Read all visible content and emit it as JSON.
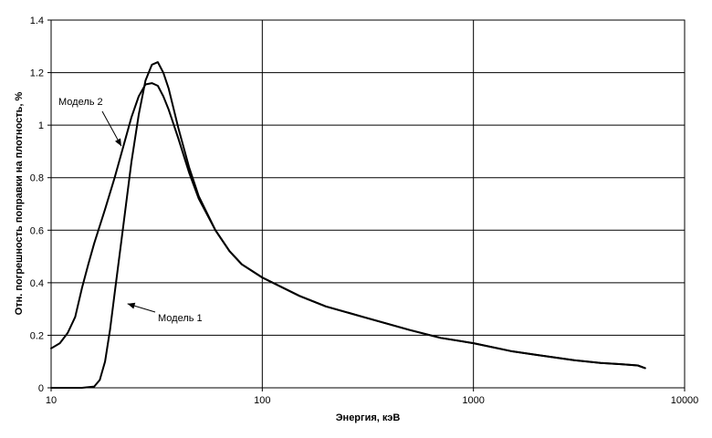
{
  "chart_data": {
    "type": "line",
    "title": "",
    "xlabel": "Энергия, кэВ",
    "ylabel": "Отн. погрешность поправки на плотность, %",
    "x_scale": "log",
    "xlim": [
      10,
      10000
    ],
    "ylim": [
      0,
      1.4
    ],
    "x_ticks": [
      10,
      100,
      1000,
      10000
    ],
    "x_tick_labels": [
      "10",
      "100",
      "1000",
      "10000"
    ],
    "y_ticks": [
      0,
      0.2,
      0.4,
      0.6,
      0.8,
      1,
      1.2,
      1.4
    ],
    "y_tick_labels": [
      "0",
      "0.2",
      "0.4",
      "0.6",
      "0.8",
      "1",
      "1.2",
      "1.4"
    ],
    "grid": true,
    "line_color": "#000000",
    "series": [
      {
        "name": "Модель 1",
        "x": [
          10,
          14,
          16,
          17,
          18,
          19,
          20,
          22,
          24,
          26,
          28,
          30,
          32,
          34,
          36,
          40,
          45,
          50,
          60,
          70,
          80,
          100,
          150,
          200,
          300,
          500,
          700,
          1000,
          1500,
          2000,
          3000,
          4000,
          5000,
          6000,
          6500
        ],
        "y": [
          0,
          0,
          0.005,
          0.03,
          0.1,
          0.22,
          0.36,
          0.62,
          0.86,
          1.04,
          1.17,
          1.23,
          1.24,
          1.2,
          1.14,
          0.99,
          0.84,
          0.73,
          0.6,
          0.52,
          0.47,
          0.42,
          0.35,
          0.31,
          0.27,
          0.22,
          0.19,
          0.17,
          0.14,
          0.125,
          0.105,
          0.095,
          0.09,
          0.085,
          0.075
        ]
      },
      {
        "name": "Модель 2",
        "x": [
          10,
          11,
          12,
          13,
          14,
          15,
          16,
          18,
          20,
          22,
          24,
          26,
          28,
          30,
          32,
          34,
          36,
          40,
          45,
          50,
          60,
          70,
          80,
          100,
          150,
          200,
          300,
          500,
          700,
          1000,
          1500,
          2000,
          3000,
          4000,
          5000,
          6000,
          6500
        ],
        "y": [
          0.15,
          0.17,
          0.21,
          0.27,
          0.38,
          0.47,
          0.55,
          0.68,
          0.8,
          0.92,
          1.03,
          1.11,
          1.155,
          1.16,
          1.15,
          1.11,
          1.06,
          0.95,
          0.82,
          0.72,
          0.6,
          0.52,
          0.47,
          0.42,
          0.35,
          0.31,
          0.27,
          0.22,
          0.19,
          0.17,
          0.14,
          0.125,
          0.105,
          0.095,
          0.09,
          0.085,
          0.075
        ]
      }
    ],
    "annotations": [
      {
        "text": "Модель 2",
        "arrow_to": {
          "x": 21.5,
          "y": 0.92
        }
      },
      {
        "text": "Модель 1",
        "arrow_to": {
          "x": 23,
          "y": 0.32
        }
      }
    ]
  }
}
